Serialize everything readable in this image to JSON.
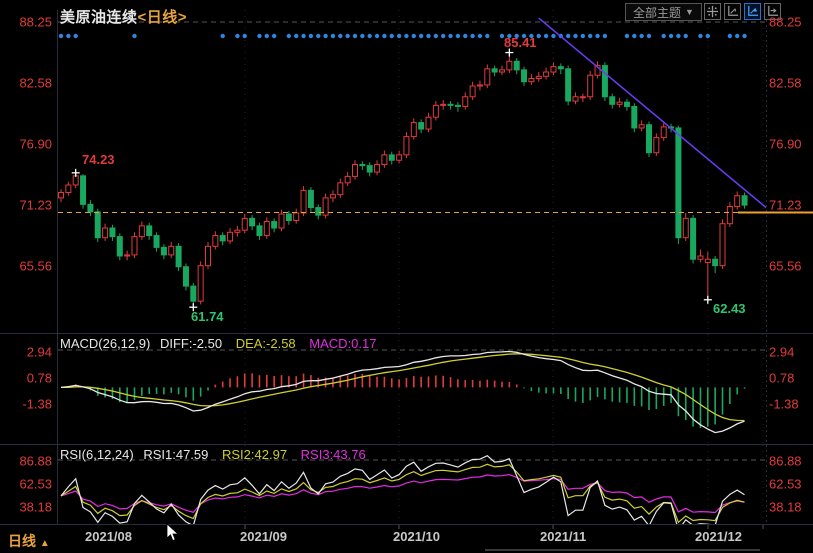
{
  "header": {
    "symbol": "美原油连续",
    "period": "<日线>"
  },
  "toolbar": {
    "theme_selector": "全部主题",
    "dropdown_arrow": "▼",
    "icons": [
      "pan-icon",
      "axis-scale-icon",
      "axis-scale-active-icon",
      "axis-shift-icon"
    ]
  },
  "main_panel": {
    "axis": [
      "88.25",
      "82.58",
      "76.90",
      "71.23",
      "65.56"
    ],
    "current_price": "71.23",
    "annotations": {
      "aug_high": "74.23",
      "peak_high": "85.41",
      "aug_low": "61.74",
      "dec_low": "62.43"
    }
  },
  "macd_panel": {
    "title": "MACD(26,12,9)",
    "diff_label": "DIFF:-2.50",
    "dea_label": "DEA:-2.58",
    "macd_label": "MACD:0.17",
    "axis": [
      "2.94",
      "0.78",
      "-1.38"
    ]
  },
  "rsi_panel": {
    "title": "RSI(6,12,24)",
    "rsi1_label": "RSI1:47.59",
    "rsi2_label": "RSI2:42.97",
    "rsi3_label": "RSI3:43.76",
    "axis": [
      "86.88",
      "62.53",
      "38.18"
    ]
  },
  "footer": {
    "period_tab": "日线",
    "tab_arrow": "▲",
    "x_labels": [
      "2021/08",
      "2021/09",
      "2021/10",
      "2021/11",
      "2021/12"
    ]
  },
  "colors": {
    "up": "#e23b3b",
    "down": "#19a85f",
    "axis_text": "#e23b3b",
    "diff_line": "#e8e8e8",
    "dea_line": "#cfcf30",
    "macd_line": "#e32de3",
    "rsi1": "#e8e8e8",
    "rsi2": "#cfcf30",
    "rsi3": "#e32de3",
    "signal_dots": "#2e86de",
    "trendline": "#6a3df5",
    "price_line": "#f0a030",
    "label_green": "#2fc56f",
    "period_accent": "#e8a33d"
  },
  "chart_data": {
    "type": "candlestick",
    "title": "美原油连续 日线",
    "x_labels": [
      "2021/08",
      "2021/09",
      "2021/10",
      "2021/11",
      "2021/12"
    ],
    "price_ticks": [
      88.25,
      82.58,
      76.9,
      71.23,
      65.56
    ],
    "macd_ticks": [
      2.94,
      0.78,
      -1.38
    ],
    "rsi_ticks": [
      86.88,
      62.53,
      38.18
    ],
    "indicators": {
      "macd": {
        "params": [
          26,
          12,
          9
        ],
        "diff": -2.5,
        "dea": -2.58,
        "macd": 0.17
      },
      "rsi": {
        "params": [
          6,
          12,
          24
        ],
        "rsi1": 47.59,
        "rsi2": 42.97,
        "rsi3": 43.76
      }
    },
    "marked_points": {
      "aug_high": {
        "index": 2,
        "price": 74.23
      },
      "peak_high": {
        "index": 61,
        "price": 85.41
      },
      "aug_low": {
        "index": 18,
        "price": 61.74
      },
      "dec_low": {
        "index": 88,
        "price": 62.43
      },
      "last_close": 71.23
    },
    "trendline": {
      "from_index": 65,
      "from_price": 88.62,
      "to_index": 96,
      "to_price": 70.96
    },
    "signal_dots": [
      0,
      1,
      2,
      10,
      22,
      24,
      25,
      27,
      28,
      29,
      31,
      32,
      33,
      34,
      35,
      36,
      37,
      38,
      39,
      40,
      41,
      42,
      43,
      44,
      45,
      46,
      47,
      48,
      49,
      50,
      51,
      52,
      53,
      54,
      55,
      56,
      57,
      58,
      60,
      61,
      62,
      63,
      64,
      65,
      66,
      67,
      68,
      69,
      70,
      71,
      72,
      73,
      74,
      77,
      78,
      79,
      80,
      82,
      83,
      84,
      85,
      87,
      88,
      91,
      92,
      93
    ],
    "candles": [
      [
        71.9,
        72.7,
        71.5,
        72.4
      ],
      [
        72.4,
        73.4,
        72.1,
        73.1
      ],
      [
        73.1,
        74.23,
        72.8,
        73.95
      ],
      [
        73.95,
        74.1,
        70.9,
        71.3
      ],
      [
        71.3,
        71.7,
        70.2,
        70.6
      ],
      [
        70.6,
        70.9,
        67.8,
        68.2
      ],
      [
        68.2,
        69.5,
        67.9,
        69.1
      ],
      [
        69.1,
        69.4,
        67.9,
        68.3
      ],
      [
        68.3,
        68.6,
        66.1,
        66.5
      ],
      [
        66.5,
        67.0,
        66.1,
        66.6
      ],
      [
        66.6,
        68.7,
        66.3,
        68.3
      ],
      [
        68.3,
        69.7,
        68.0,
        69.3
      ],
      [
        69.3,
        69.6,
        68.0,
        68.4
      ],
      [
        68.4,
        68.7,
        66.9,
        67.3
      ],
      [
        67.3,
        67.6,
        66.2,
        66.6
      ],
      [
        66.6,
        67.8,
        66.3,
        67.4
      ],
      [
        67.4,
        67.7,
        65.1,
        65.5
      ],
      [
        65.5,
        65.8,
        63.3,
        63.7
      ],
      [
        63.7,
        64.0,
        61.74,
        62.3
      ],
      [
        62.3,
        66.0,
        62.0,
        65.6
      ],
      [
        65.6,
        67.8,
        65.3,
        67.4
      ],
      [
        67.4,
        68.8,
        67.1,
        68.4
      ],
      [
        68.4,
        68.7,
        67.5,
        67.9
      ],
      [
        67.9,
        69.1,
        67.6,
        68.7
      ],
      [
        68.7,
        69.3,
        68.3,
        68.9
      ],
      [
        68.9,
        70.4,
        68.6,
        70.0
      ],
      [
        70.0,
        70.3,
        68.9,
        69.3
      ],
      [
        69.3,
        69.6,
        68.0,
        68.4
      ],
      [
        68.4,
        70.1,
        68.1,
        69.7
      ],
      [
        69.7,
        70.0,
        68.7,
        69.1
      ],
      [
        69.1,
        70.8,
        68.8,
        70.4
      ],
      [
        70.4,
        70.7,
        69.4,
        69.8
      ],
      [
        69.8,
        70.9,
        69.5,
        70.5
      ],
      [
        70.5,
        73.0,
        70.2,
        72.6
      ],
      [
        72.6,
        72.9,
        70.6,
        71.0
      ],
      [
        71.0,
        71.3,
        69.9,
        70.3
      ],
      [
        70.3,
        72.3,
        70.0,
        71.9
      ],
      [
        71.9,
        72.6,
        71.5,
        72.2
      ],
      [
        72.2,
        73.7,
        71.9,
        73.3
      ],
      [
        73.3,
        74.3,
        73.0,
        73.9
      ],
      [
        73.9,
        75.4,
        73.6,
        75.0
      ],
      [
        75.0,
        75.3,
        74.5,
        74.9
      ],
      [
        74.9,
        75.2,
        73.9,
        74.3
      ],
      [
        74.3,
        75.4,
        74.0,
        75.0
      ],
      [
        75.0,
        76.3,
        74.7,
        75.9
      ],
      [
        75.9,
        76.2,
        75.0,
        75.4
      ],
      [
        75.4,
        76.3,
        75.1,
        75.9
      ],
      [
        75.9,
        78.0,
        75.6,
        77.6
      ],
      [
        77.6,
        79.3,
        77.3,
        78.9
      ],
      [
        78.9,
        79.2,
        77.9,
        78.3
      ],
      [
        78.3,
        79.8,
        78.0,
        79.4
      ],
      [
        79.4,
        80.9,
        79.1,
        80.5
      ],
      [
        80.5,
        81.0,
        80.1,
        80.6
      ],
      [
        80.6,
        80.9,
        80.1,
        80.5
      ],
      [
        80.5,
        80.8,
        79.9,
        80.4
      ],
      [
        80.4,
        81.7,
        80.1,
        81.3
      ],
      [
        81.3,
        82.7,
        81.0,
        82.3
      ],
      [
        82.3,
        82.8,
        81.9,
        82.4
      ],
      [
        82.4,
        84.3,
        82.1,
        83.9
      ],
      [
        83.9,
        84.2,
        83.2,
        83.6
      ],
      [
        83.6,
        84.2,
        83.3,
        83.8
      ],
      [
        83.8,
        85.41,
        83.5,
        84.6
      ],
      [
        84.6,
        84.9,
        83.4,
        83.8
      ],
      [
        83.8,
        84.1,
        82.3,
        82.7
      ],
      [
        82.7,
        83.4,
        82.4,
        83.0
      ],
      [
        83.0,
        83.6,
        82.7,
        83.2
      ],
      [
        83.2,
        84.0,
        82.9,
        83.6
      ],
      [
        83.6,
        84.5,
        83.3,
        84.1
      ],
      [
        84.1,
        84.4,
        83.4,
        83.9
      ],
      [
        83.9,
        84.2,
        80.5,
        80.9
      ],
      [
        80.9,
        81.7,
        80.6,
        81.3
      ],
      [
        81.3,
        81.6,
        80.8,
        81.3
      ],
      [
        81.3,
        83.7,
        81.0,
        83.3
      ],
      [
        83.3,
        84.6,
        83.0,
        84.2
      ],
      [
        84.2,
        84.5,
        80.9,
        81.3
      ],
      [
        81.3,
        81.6,
        80.2,
        80.6
      ],
      [
        80.6,
        81.2,
        80.3,
        80.8
      ],
      [
        80.8,
        81.1,
        80.0,
        80.4
      ],
      [
        80.4,
        80.7,
        78.0,
        78.4
      ],
      [
        78.4,
        79.1,
        78.1,
        78.7
      ],
      [
        78.7,
        79.0,
        75.7,
        76.1
      ],
      [
        76.1,
        77.9,
        75.8,
        77.5
      ],
      [
        77.5,
        78.9,
        77.2,
        78.5
      ],
      [
        78.5,
        78.8,
        78.0,
        78.4
      ],
      [
        78.4,
        78.6,
        67.6,
        68.2
      ],
      [
        68.2,
        70.5,
        67.9,
        70.0
      ],
      [
        70.0,
        70.3,
        65.8,
        66.2
      ],
      [
        66.2,
        67.1,
        65.9,
        66.5
      ],
      [
        65.9,
        66.9,
        62.43,
        66.2
      ],
      [
        66.2,
        66.5,
        64.9,
        65.6
      ],
      [
        65.6,
        69.9,
        65.3,
        69.5
      ],
      [
        69.5,
        71.5,
        69.2,
        71.1
      ],
      [
        71.1,
        72.5,
        70.8,
        72.1
      ],
      [
        72.1,
        72.4,
        70.9,
        71.23
      ]
    ]
  }
}
